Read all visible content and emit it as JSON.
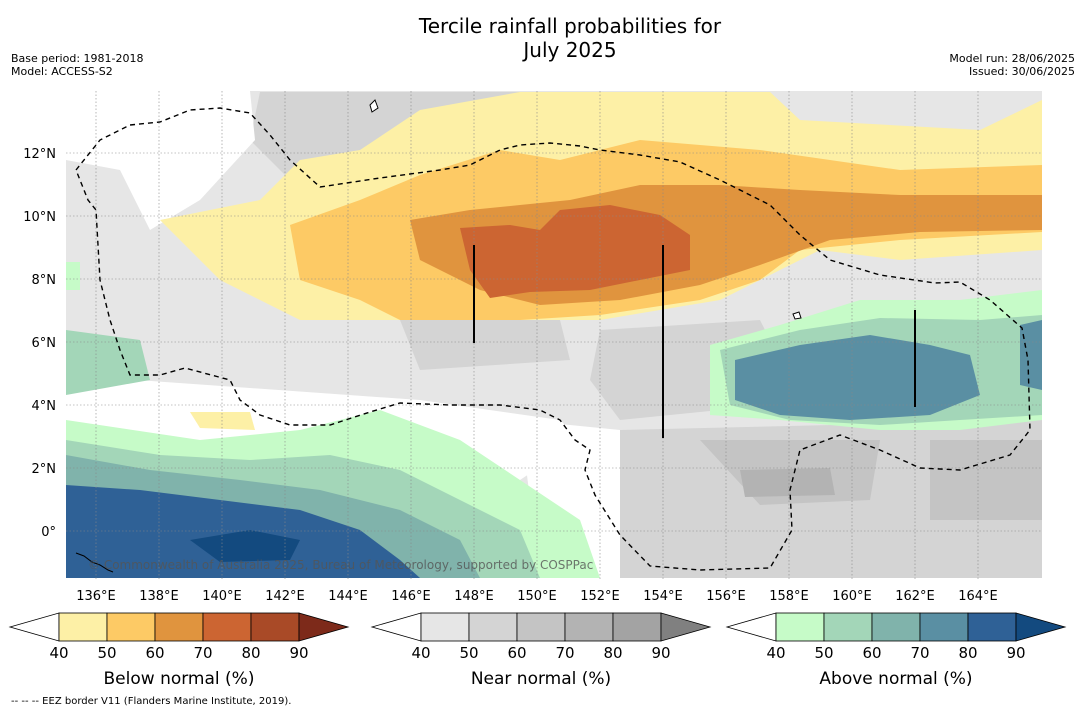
{
  "header": {
    "title_line1": "Tercile rainfall probabilities for",
    "title_line2": "July 2025",
    "base_period": "Base period: 1981-2018",
    "model": "Model: ACCESS-S2",
    "model_run": "Model run: 28/06/2025",
    "issued": "Issued: 30/06/2025"
  },
  "map": {
    "lon_ticks": [
      "136°E",
      "138°E",
      "140°E",
      "142°E",
      "144°E",
      "146°E",
      "148°E",
      "150°E",
      "152°E",
      "154°E",
      "156°E",
      "158°E",
      "160°E",
      "162°E",
      "164°E"
    ],
    "lat_ticks": [
      "12°N",
      "10°N",
      "8°N",
      "6°N",
      "4°N",
      "2°N",
      "0°"
    ],
    "watermark": "© Commonwealth of Australia 2025, Bureau of Meteorology, supported by COSPPac"
  },
  "colorbars": [
    {
      "label": "Below normal (%)",
      "ticks": [
        "40",
        "50",
        "60",
        "70",
        "80",
        "90"
      ],
      "colors": [
        "#ffffff",
        "#fdf0a6",
        "#fdca65",
        "#e0943e",
        "#cc6532",
        "#a94a27",
        "#7d2a1a"
      ]
    },
    {
      "label": "Near normal (%)",
      "ticks": [
        "40",
        "50",
        "60",
        "70",
        "80",
        "90"
      ],
      "colors": [
        "#ffffff",
        "#e6e6e6",
        "#d4d4d4",
        "#c4c4c4",
        "#b3b3b3",
        "#a3a3a3",
        "#808080"
      ]
    },
    {
      "label": "Above normal (%)",
      "ticks": [
        "40",
        "50",
        "60",
        "70",
        "80",
        "90"
      ],
      "colors": [
        "#ffffff",
        "#c6fbc8",
        "#a3d6b8",
        "#80b3ab",
        "#5a8fa3",
        "#2f6196",
        "#134a7f"
      ]
    }
  ],
  "footnote": "--  --  -- EEZ border V11 (Flanders Marine Institute, 2019).",
  "chart_data": {
    "type": "heatmap",
    "title": "Tercile rainfall probabilities for July 2025",
    "xlabel": "",
    "ylabel": "",
    "xlim": [
      135,
      166
    ],
    "ylim": [
      -1.5,
      14
    ],
    "regions": [
      {
        "category": "Near normal",
        "level": 50,
        "note": "widespread background"
      },
      {
        "category": "Below normal",
        "level": 50,
        "lon": [
          139.5,
          166
        ],
        "lat": [
          7,
          13
        ]
      },
      {
        "category": "Below normal",
        "level": 60,
        "lon": [
          141.5,
          166
        ],
        "lat": [
          7,
          12
        ]
      },
      {
        "category": "Below normal",
        "level": 70,
        "lon": [
          146,
          166
        ],
        "lat": [
          7.5,
          11
        ]
      },
      {
        "category": "Below normal",
        "level": 80,
        "lon": [
          147.5,
          154.5
        ],
        "lat": [
          7.8,
          9.8
        ]
      },
      {
        "category": "Above normal",
        "level": 50,
        "lon": [
          135,
          166
        ],
        "lat": [
          -1.5,
          6.5
        ]
      },
      {
        "category": "Above normal",
        "level": 70,
        "lon": [
          135,
          145
        ],
        "lat": [
          -1.5,
          2
        ]
      },
      {
        "category": "Above normal",
        "level": 80,
        "lon": [
          139,
          142
        ],
        "lat": [
          -1.5,
          0
        ]
      },
      {
        "category": "Above normal",
        "level": 70,
        "lon": [
          157,
          166
        ],
        "lat": [
          3.5,
          6
        ]
      }
    ]
  }
}
